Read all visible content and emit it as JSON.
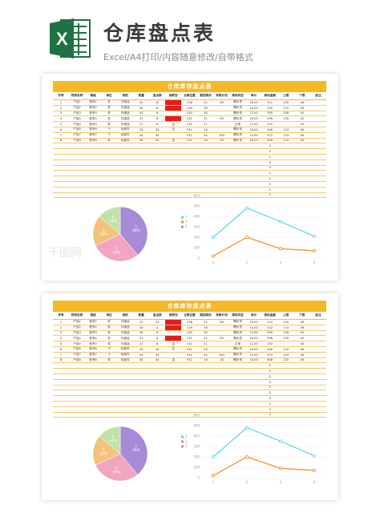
{
  "header": {
    "title": "仓库盘点表",
    "subtitle": "Excel/A4打印/内容随意修改/自带格式"
  },
  "sheet": {
    "banner": "仓库库存盘点表",
    "columns": [
      "序号",
      "物资名称",
      "规格",
      "单位",
      "类别",
      "数量",
      "盘点数",
      "绑死否",
      "仓库位置",
      "期初库存",
      "采购计划",
      "库存状态",
      "单价",
      "库存金额",
      "上限",
      "下限",
      "备注"
    ],
    "rows": [
      [
        "1",
        "产品1",
        "型号1",
        "件",
        "外观品",
        "32",
        "32",
        "否",
        "C38",
        "32",
        "68",
        "需补货",
        "16.00",
        "512",
        "100",
        "48",
        ""
      ],
      [
        "2",
        "产品2",
        "型号2",
        "件",
        "外观品",
        "38",
        "8",
        "",
        "C39",
        "38",
        "",
        "需补货",
        "14.00",
        "532",
        "110",
        "48",
        ""
      ],
      [
        "3",
        "产品3",
        "型号3",
        "件",
        "外观品",
        "30",
        "8",
        "",
        "C40",
        "30",
        "",
        "需补货",
        "13.00",
        "390",
        "108",
        "40",
        ""
      ],
      [
        "4",
        "产品4",
        "型号4",
        "件",
        "外观品",
        "31",
        "8",
        "否",
        "C41",
        "31",
        "63",
        "需补货",
        "16.00",
        "496",
        "130",
        "40",
        ""
      ],
      [
        "5",
        "产品5",
        "型号5",
        "件",
        "外观品",
        "21",
        "8",
        "否",
        "C42",
        "21",
        "",
        "正常",
        "12.00",
        "252",
        "",
        "40",
        ""
      ],
      [
        "6",
        "产品6",
        "型号6",
        "个",
        "标准件",
        "28",
        "44",
        "否",
        "F41",
        "28",
        "",
        "需补货",
        "16.00",
        "448",
        "120",
        "46",
        ""
      ],
      [
        "7",
        "产品7",
        "型号7",
        "个",
        "标准件",
        "44",
        "44",
        "",
        "F41",
        "44",
        "263",
        "需补货",
        "13.00",
        "572",
        "143",
        "46",
        ""
      ],
      [
        "8",
        "产品8",
        "型号8",
        "件",
        "标准件",
        "38",
        "44",
        "否",
        "F41",
        "16",
        "28",
        "需补货",
        "16.00",
        "608",
        "120",
        "46",
        ""
      ]
    ],
    "red_cells": [
      [
        0,
        7
      ],
      [
        1,
        7
      ],
      [
        3,
        7
      ]
    ],
    "zero_rows": [
      "0",
      "0",
      "0",
      "0",
      "0",
      "0",
      "0",
      "0",
      "0",
      "0"
    ]
  },
  "pie": {
    "slices": [
      {
        "label": "1",
        "pct": "39%",
        "value": 39,
        "color": "#a78bd6"
      },
      {
        "label": "2",
        "pct": "29%",
        "value": 29,
        "color": "#f2a5c1"
      },
      {
        "label": "3",
        "pct": "18%",
        "value": 18,
        "color": "#f5c27a"
      },
      {
        "label": "4",
        "pct": "14%",
        "value": 14,
        "color": "#bfe3a6"
      }
    ]
  },
  "chart_data": {
    "type": "line",
    "x": [
      "1",
      "2",
      "3",
      "4"
    ],
    "ylim": [
      0,
      600
    ],
    "yticks": [
      "0",
      "100",
      "200",
      "300",
      "400",
      "500",
      "600"
    ],
    "legend": [
      "1",
      "2",
      "3"
    ],
    "series": [
      {
        "values": [
          200,
          480,
          350,
          210
        ],
        "color": "#59d4e8"
      },
      {
        "values": [
          20,
          200,
          90,
          70
        ],
        "color": "#f08a24"
      }
    ],
    "legend_colors": [
      "#59d4e8",
      "#f08a24",
      "#a0a0a0"
    ]
  },
  "watermark": "千图网"
}
